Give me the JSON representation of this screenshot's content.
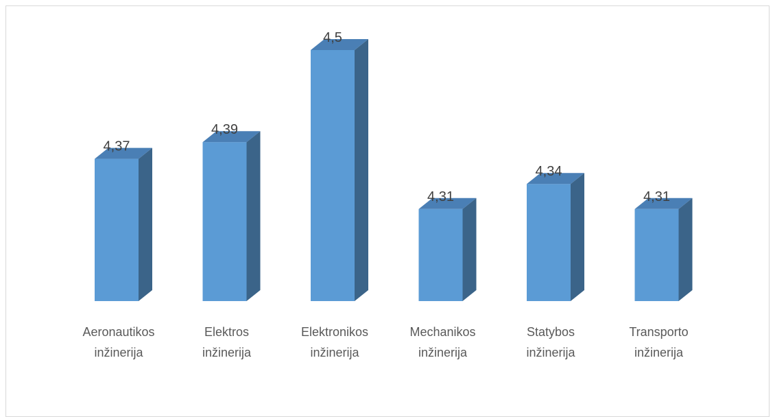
{
  "chart_data": {
    "type": "bar",
    "categories": [
      [
        "Aeronautikos",
        "inžinerija"
      ],
      [
        "Elektros",
        "inžinerija"
      ],
      [
        "Elektronikos",
        "inžinerija"
      ],
      [
        "Mechanikos",
        "inžinerija"
      ],
      [
        "Statybos",
        "inžinerija"
      ],
      [
        "Transporto",
        "inžinerija"
      ]
    ],
    "values": [
      4.37,
      4.39,
      4.5,
      4.31,
      4.34,
      4.31
    ],
    "data_labels": [
      "4,37",
      "4,39",
      "4,5",
      "4,31",
      "4,34",
      "4,31"
    ],
    "ylim": [
      4.2,
      4.5
    ],
    "grid": false,
    "legend": "none",
    "style": "3d-column",
    "colors": {
      "front": "#5b9bd5",
      "side": "#3b6489",
      "top": "#4a7fb5"
    }
  }
}
